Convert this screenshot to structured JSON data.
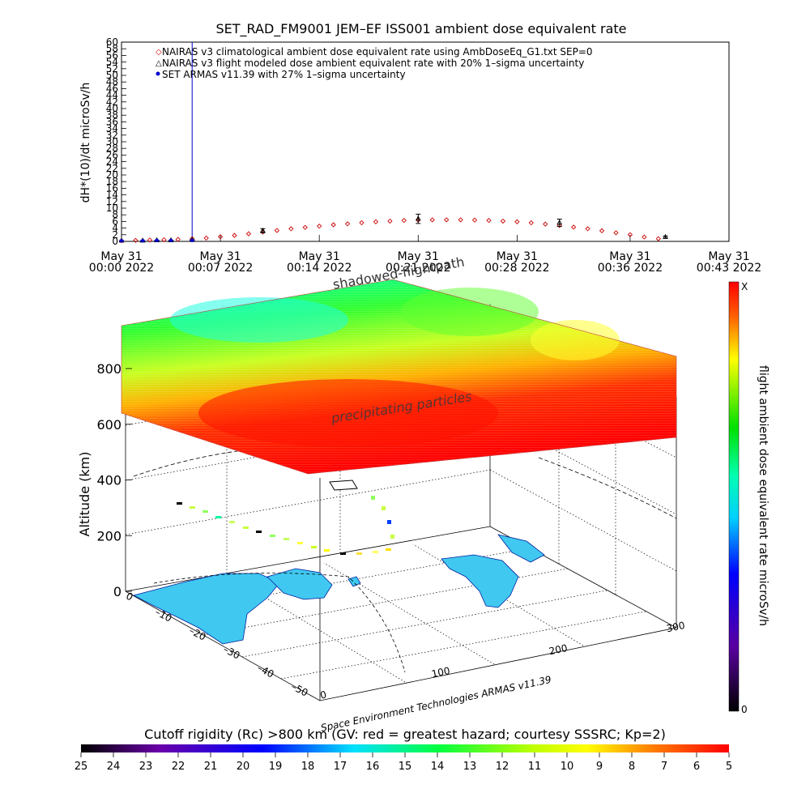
{
  "chart_data": [
    {
      "type": "scatter",
      "title": "SET_RAD_FM9001  JEM–EF ISS001 ambient dose equivalent rate",
      "ylabel": "dH*(10)/dt microSv/h",
      "ylim": [
        0,
        60
      ],
      "y_ticks": [
        0,
        2,
        4,
        6,
        8,
        10,
        12,
        14,
        16,
        18,
        20,
        22,
        24,
        26,
        28,
        30,
        32,
        34,
        36,
        38,
        40,
        42,
        44,
        46,
        48,
        50,
        52,
        54,
        56,
        58,
        60
      ],
      "x_range": [
        "00:00",
        "00:43"
      ],
      "x_ticks": [
        {
          "t": 0,
          "date": "May 31",
          "time": "00:00 2022"
        },
        {
          "t": 7,
          "date": "May 31",
          "time": "00:07 2022"
        },
        {
          "t": 14,
          "date": "May 31",
          "time": "00:14 2022"
        },
        {
          "t": 21,
          "date": "May 31",
          "time": "00:21 2022"
        },
        {
          "t": 28,
          "date": "May 31",
          "time": "00:28 2022"
        },
        {
          "t": 36,
          "date": "May 31",
          "time": "00:36 2022"
        },
        {
          "t": 43,
          "date": "May 31",
          "time": "00:43 2022"
        }
      ],
      "legend": [
        "NAIRAS v3 climatological ambient dose equivalent rate using AmbDoseEq_G1.txt SEP=0",
        "NAIRAS v3 flight modeled dose ambient equivalent rate with 20% 1–sigma uncertainty",
        "SET ARMAS v11.39 with 27% 1–sigma uncertainty"
      ],
      "legend_position": "top-left",
      "series": [
        {
          "marker": "diamond",
          "color": "#cc0000",
          "x": [
            0,
            1,
            2,
            3,
            4,
            5,
            6,
            7,
            8,
            9,
            10,
            11,
            12,
            13,
            14,
            15,
            16,
            17,
            18,
            19,
            20,
            21,
            22,
            23,
            24,
            25,
            26,
            27,
            28,
            29,
            30,
            31,
            32,
            33,
            34,
            35,
            36,
            37,
            38
          ],
          "y": [
            0.2,
            0.3,
            0.4,
            0.5,
            0.6,
            0.8,
            1.0,
            1.4,
            1.8,
            2.3,
            2.8,
            3.3,
            3.8,
            4.2,
            4.6,
            5.0,
            5.3,
            5.6,
            5.9,
            6.1,
            6.3,
            6.4,
            6.5,
            6.5,
            6.5,
            6.4,
            6.3,
            6.1,
            5.9,
            5.6,
            5.2,
            4.8,
            4.3,
            3.8,
            3.2,
            2.6,
            2.0,
            1.3,
            0.8
          ]
        },
        {
          "marker": "triangle",
          "color": "#000000",
          "x": [
            0,
            1.5,
            2.5,
            3.5,
            5,
            10,
            21,
            31,
            38.5
          ],
          "y": [
            0.2,
            0.2,
            0.3,
            0.3,
            0.4,
            3.2,
            6.8,
            5.6,
            1.3
          ],
          "err": [
            0.05,
            0.05,
            0.06,
            0.06,
            0.08,
            0.6,
            1.4,
            1.1,
            0.3
          ]
        },
        {
          "marker": "dot",
          "color": "#0000cc",
          "x": [
            0,
            1.5,
            2.5,
            3.5,
            5
          ],
          "y": [
            0.2,
            0.2,
            0.3,
            0.3,
            0.3
          ],
          "err": [
            0.05,
            0.05,
            0.06,
            0.06,
            0.06
          ]
        }
      ],
      "spike": {
        "x": 5,
        "y": 60,
        "color": "#0000cc"
      }
    },
    {
      "type": "surface3d",
      "z_label": "Altitude (km)",
      "z_ticks": [
        0,
        200,
        400,
        600,
        800
      ],
      "x_ticks": [
        "0",
        "100",
        "200",
        "300"
      ],
      "y_ticks": [
        "0",
        "–10",
        "–20",
        "–30",
        "–40",
        "–50"
      ],
      "annotations": [
        "shadowed-flightpath",
        "precipitating particles"
      ],
      "colorbar": {
        "label": "flight ambient dose equivalent rate microSv/h",
        "max_label": "X",
        "min_label": "0"
      },
      "credit": "Space Environment Technologies ARMAS v11.39"
    },
    {
      "type": "colorbar",
      "title": "Cutoff rigidity (Rc) >800 km (GV: red = greatest hazard; courtesy SSSRC; Kp=2)",
      "ticks": [
        25,
        24,
        23,
        22,
        21,
        20,
        19,
        18,
        17,
        16,
        15,
        14,
        13,
        12,
        11,
        10,
        9,
        8,
        7,
        6,
        5
      ],
      "colors": [
        "#000000",
        "#6a00a8",
        "#0000ff",
        "#00ffff",
        "#00ff00",
        "#ffff00",
        "#ff0000"
      ]
    }
  ]
}
